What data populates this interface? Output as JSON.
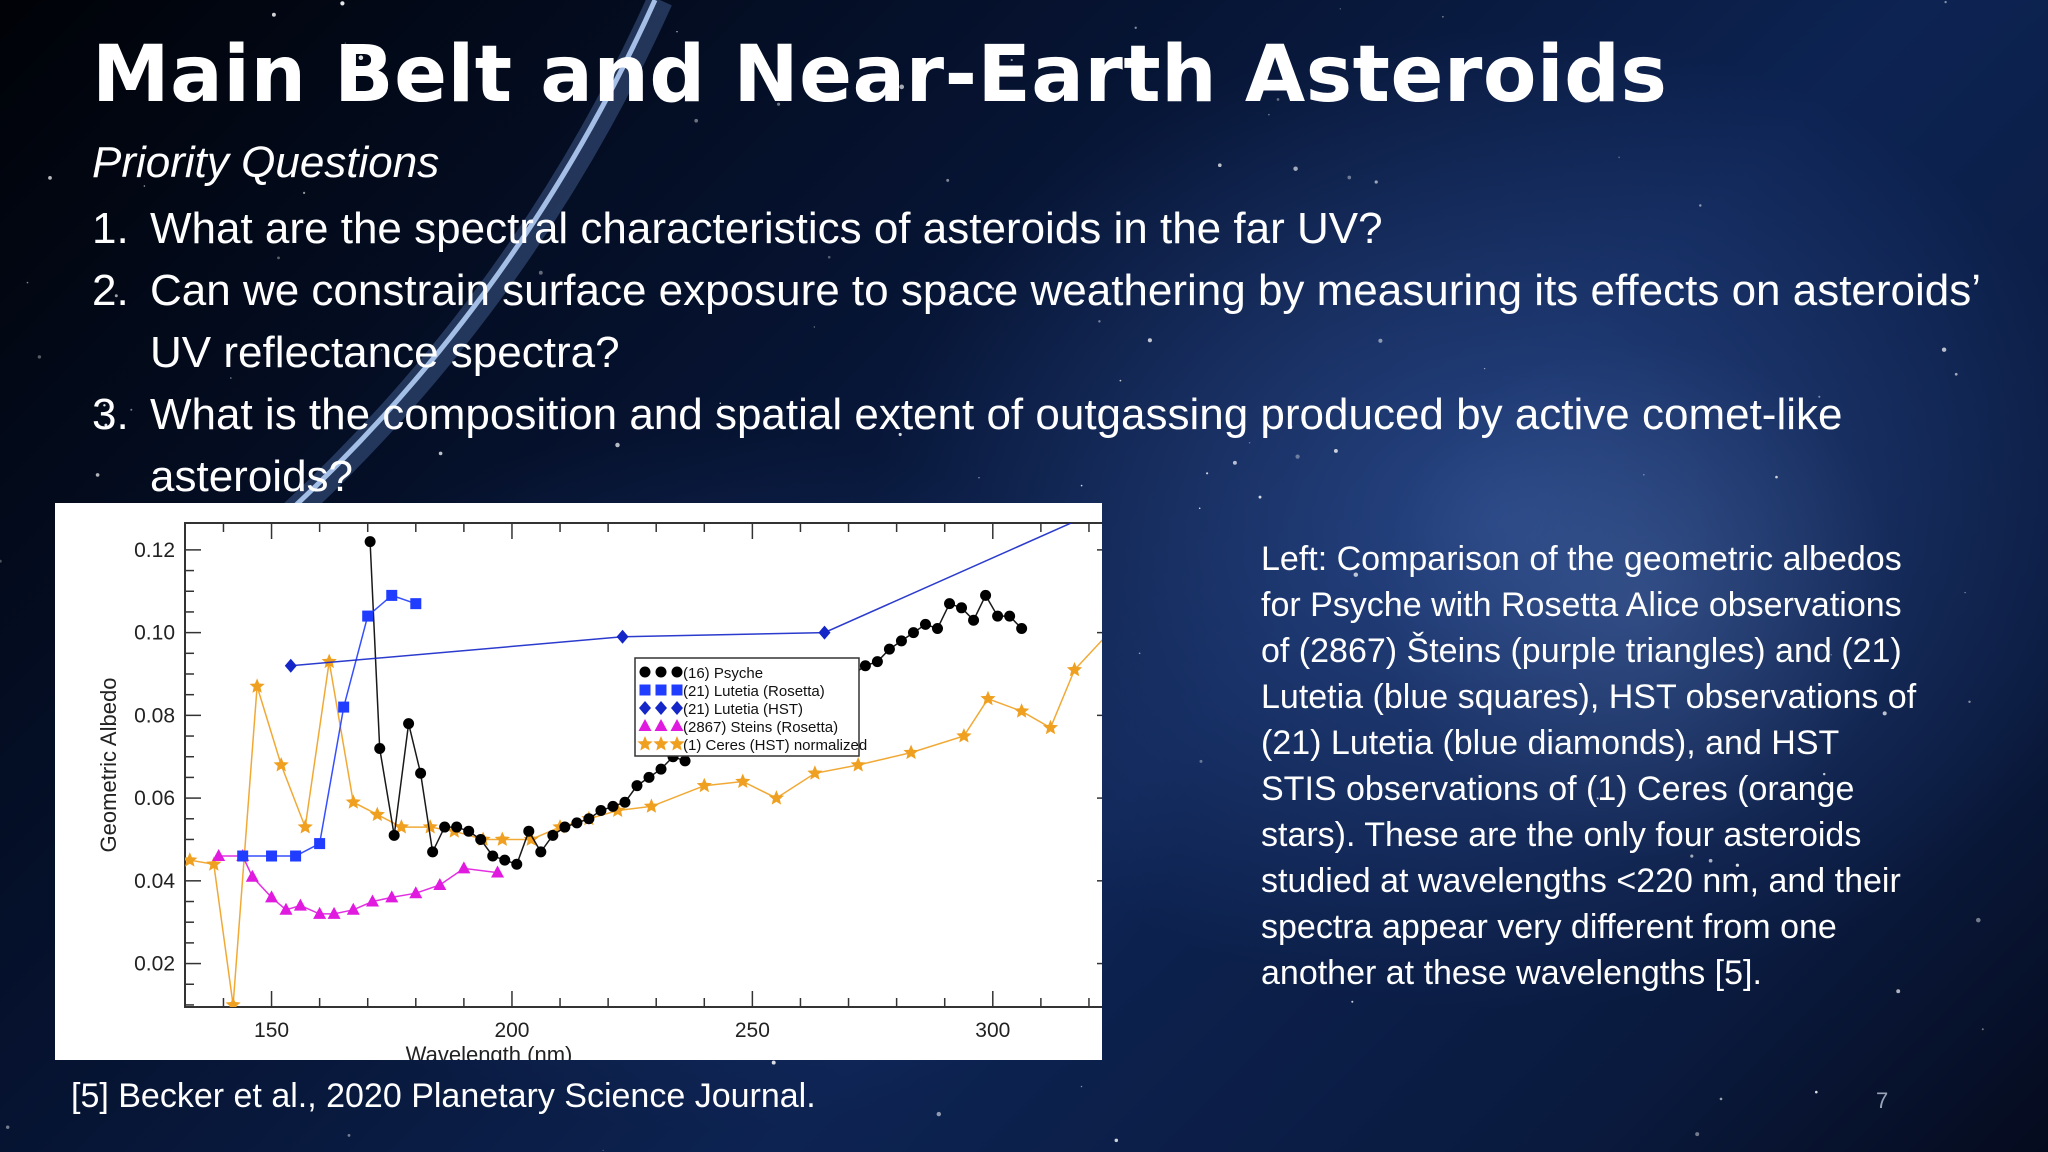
{
  "slide": {
    "title": "Main Belt and Near-Earth Asteroids",
    "subtitle": "Priority Questions",
    "questions": [
      {
        "number": "1.",
        "text": "What are the spectral characteristics of asteroids in the far UV?"
      },
      {
        "number": "2.",
        "text": "Can we constrain surface exposure to space weathering by measuring its effects on asteroids’ UV reflectance spectra?"
      },
      {
        "number": "3.",
        "text": "What is the composition and spatial extent of outgassing produced by active comet-like asteroids?"
      }
    ],
    "caption": "Left: Comparison of the geometric albedos for Psyche with Rosetta Alice observations of (2867) Šteins (purple triangles) and (21) Lutetia (blue squares), HST observations of (21) Lutetia (blue diamonds), and HST STIS observations of (1) Ceres (orange stars). These are the only four asteroids studied at wavelengths <220 nm, and their spectra appear very different from one another at these wavelengths [5].",
    "reference": "[5] Becker et al., 2020 Planetary Science Journal.",
    "slide_number": "7"
  },
  "chart_data": {
    "type": "scatter",
    "xlabel": "Wavelength (nm)",
    "ylabel": "Geometric Albedo",
    "xlim": [
      132,
      325
    ],
    "ylim": [
      0.0095,
      0.1265
    ],
    "xticks": [
      150,
      200,
      250,
      300
    ],
    "yticks": [
      0.02,
      0.04,
      0.06,
      0.08,
      0.1,
      0.12
    ],
    "xtick_labels": [
      "150",
      "200",
      "250",
      "300"
    ],
    "ytick_labels": [
      "0.02",
      "0.04",
      "0.06",
      "0.08",
      "0.10",
      "0.12"
    ],
    "legend_position": "bottom-right",
    "series": [
      {
        "name": "(16) Psyche",
        "color": "#000000",
        "marker": "circle",
        "connected": true,
        "points": [
          [
            170.5,
            0.122
          ],
          [
            172.5,
            0.072
          ],
          [
            175.5,
            0.051
          ],
          [
            178.5,
            0.078
          ],
          [
            181,
            0.066
          ],
          [
            183.5,
            0.047
          ],
          [
            186,
            0.053
          ],
          [
            188.5,
            0.053
          ],
          [
            191,
            0.052
          ],
          [
            193.5,
            0.05
          ],
          [
            196,
            0.046
          ],
          [
            198.5,
            0.045
          ],
          [
            201,
            0.044
          ],
          [
            203.5,
            0.052
          ],
          [
            206,
            0.047
          ],
          [
            208.5,
            0.051
          ],
          [
            211,
            0.053
          ],
          [
            213.5,
            0.054
          ],
          [
            216,
            0.055
          ],
          [
            218.5,
            0.057
          ],
          [
            221,
            0.058
          ],
          [
            223.5,
            0.059
          ],
          [
            226,
            0.063
          ],
          [
            228.5,
            0.065
          ],
          [
            231,
            0.067
          ],
          [
            233.5,
            0.07
          ],
          [
            236,
            0.069
          ],
          [
            238.5,
            0.075
          ],
          [
            241,
            0.075
          ],
          [
            243.5,
            0.074
          ],
          [
            246,
            0.074
          ],
          [
            248.5,
            0.078
          ],
          [
            251,
            0.078
          ],
          [
            253.5,
            0.08
          ],
          [
            256,
            0.083
          ],
          [
            258.5,
            0.086
          ],
          [
            261,
            0.087
          ],
          [
            263.5,
            0.088
          ],
          [
            266,
            0.089
          ],
          [
            268.5,
            0.091
          ],
          [
            271,
            0.09
          ],
          [
            273.5,
            0.092
          ],
          [
            276,
            0.093
          ],
          [
            278.5,
            0.096
          ],
          [
            281,
            0.098
          ],
          [
            283.5,
            0.1
          ],
          [
            286,
            0.102
          ],
          [
            288.5,
            0.101
          ],
          [
            291,
            0.107
          ],
          [
            293.5,
            0.106
          ],
          [
            296,
            0.103
          ],
          [
            298.5,
            0.109
          ],
          [
            301,
            0.104
          ],
          [
            303.5,
            0.104
          ],
          [
            306,
            0.101
          ]
        ]
      },
      {
        "name": "(21) Lutetia (Rosetta)",
        "color": "#1f3cff",
        "marker": "square",
        "connected": true,
        "points": [
          [
            144,
            0.046
          ],
          [
            150,
            0.046
          ],
          [
            155,
            0.046
          ],
          [
            160,
            0.049
          ],
          [
            165,
            0.082
          ],
          [
            170,
            0.104
          ],
          [
            175,
            0.109
          ],
          [
            180,
            0.107
          ]
        ]
      },
      {
        "name": "(21) Lutetia (HST)",
        "color": "#1426c8",
        "marker": "diamond",
        "connected": true,
        "points": [
          [
            154,
            0.092
          ],
          [
            223,
            0.099
          ],
          [
            265,
            0.1
          ],
          [
            325,
            0.131
          ]
        ]
      },
      {
        "name": "(2867) Steins (Rosetta)",
        "color": "#e01adf",
        "marker": "triangle",
        "connected": true,
        "points": [
          [
            139,
            0.046
          ],
          [
            144,
            0.046
          ],
          [
            146,
            0.041
          ],
          [
            150,
            0.036
          ],
          [
            153,
            0.033
          ],
          [
            156,
            0.034
          ],
          [
            160,
            0.032
          ],
          [
            163,
            0.032
          ],
          [
            167,
            0.033
          ],
          [
            171,
            0.035
          ],
          [
            175,
            0.036
          ],
          [
            180,
            0.037
          ],
          [
            185,
            0.039
          ],
          [
            190,
            0.043
          ],
          [
            197,
            0.042
          ]
        ]
      },
      {
        "name": "(1) Ceres (HST) normalized",
        "color": "#f0a020",
        "marker": "star",
        "connected": true,
        "points": [
          [
            133,
            0.045
          ],
          [
            138,
            0.044
          ],
          [
            142,
            0.01
          ],
          [
            147,
            0.087
          ],
          [
            152,
            0.068
          ],
          [
            157,
            0.053
          ],
          [
            162,
            0.093
          ],
          [
            167,
            0.059
          ],
          [
            172,
            0.056
          ],
          [
            177,
            0.053
          ],
          [
            183,
            0.053
          ],
          [
            188,
            0.052
          ],
          [
            194,
            0.05
          ],
          [
            198,
            0.05
          ],
          [
            204,
            0.05
          ],
          [
            210,
            0.053
          ],
          [
            216,
            0.055
          ],
          [
            222,
            0.057
          ],
          [
            229,
            0.058
          ],
          [
            240,
            0.063
          ],
          [
            248,
            0.064
          ],
          [
            255,
            0.06
          ],
          [
            263,
            0.066
          ],
          [
            272,
            0.068
          ],
          [
            283,
            0.071
          ],
          [
            294,
            0.075
          ],
          [
            299,
            0.084
          ],
          [
            306,
            0.081
          ],
          [
            312,
            0.077
          ],
          [
            317,
            0.091
          ],
          [
            325,
            0.101
          ]
        ]
      }
    ]
  }
}
